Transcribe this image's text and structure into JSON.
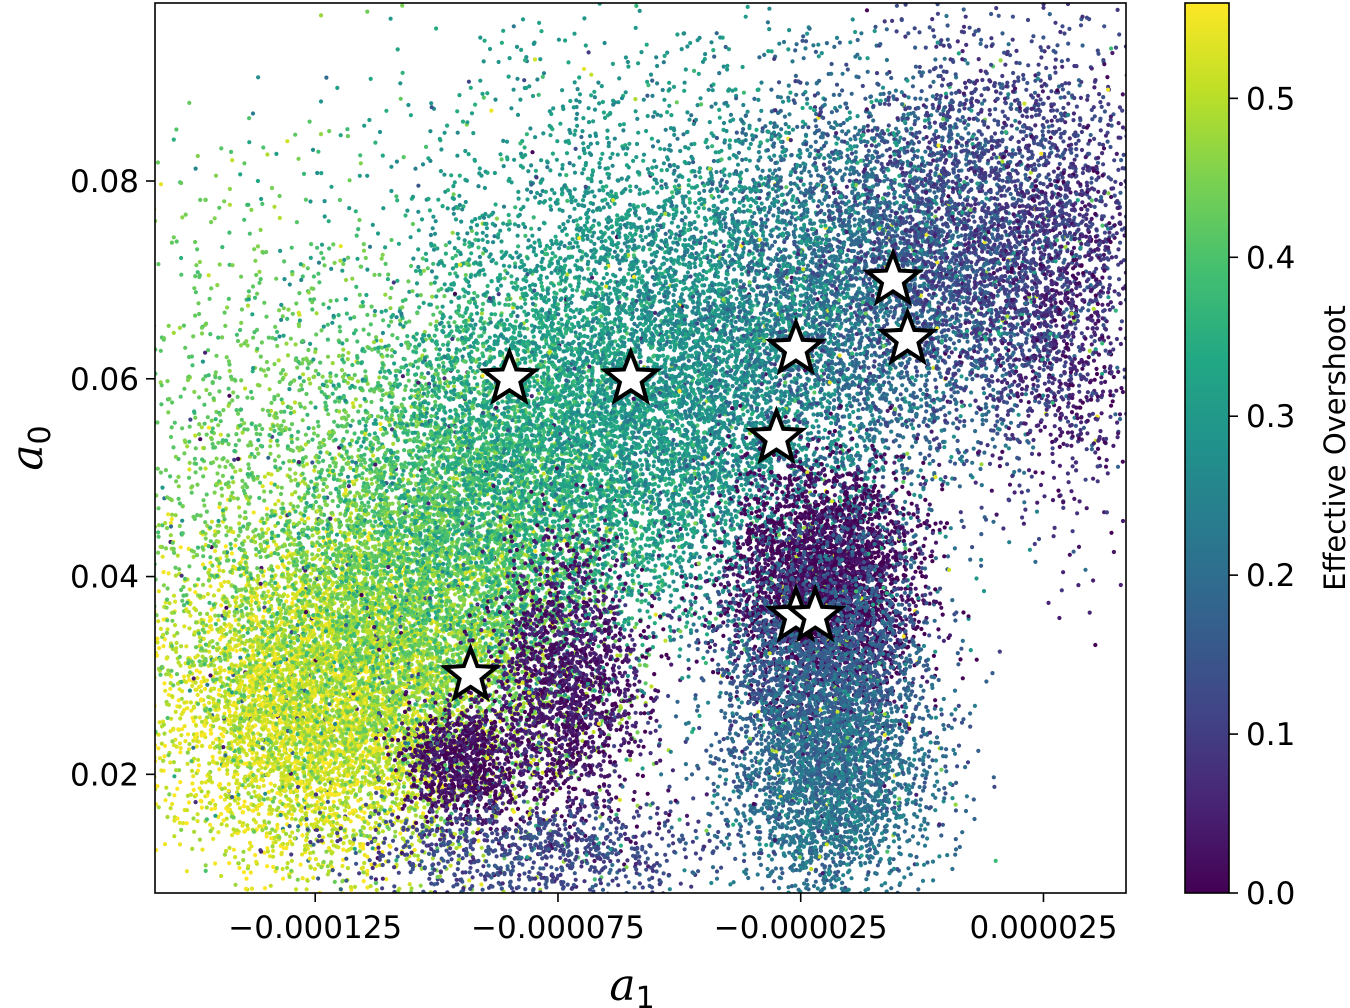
{
  "chart_data": {
    "type": "scatter",
    "title": "",
    "xlabel": "a",
    "xlabel_subscript": "1",
    "ylabel": "a",
    "ylabel_subscript": "0",
    "xlim": [
      -0.000158,
      4.2e-05
    ],
    "ylim": [
      0.008,
      0.098
    ],
    "x_ticks": [
      -0.000125,
      -7.5e-05,
      -2.5e-05,
      2.5e-05
    ],
    "x_tick_labels": [
      "−0.000125",
      "−0.000075",
      "−0.000025",
      "0.000025"
    ],
    "y_ticks": [
      0.02,
      0.04,
      0.06,
      0.08
    ],
    "y_tick_labels": [
      "0.02",
      "0.04",
      "0.06",
      "0.08"
    ],
    "grid": false,
    "colorbar": {
      "label": "Effective Overshoot",
      "colormap": "viridis",
      "range": [
        0.0,
        0.56
      ],
      "ticks": [
        0.0,
        0.1,
        0.2,
        0.3,
        0.4,
        0.5
      ],
      "tick_labels": [
        "0.0",
        "0.1",
        "0.2",
        "0.3",
        "0.4",
        "0.5"
      ]
    },
    "series": [
      {
        "marker": "point",
        "description_points": "dense cloud of samples, clusters (x, y, value)",
        "clusters": [
          {
            "x": -0.000125,
            "y": 0.027,
            "sx": 1.6e-05,
            "sy": 0.008,
            "value": 0.53,
            "n": 5000
          },
          {
            "x": -0.000105,
            "y": 0.034,
            "sx": 1.8e-05,
            "sy": 0.01,
            "value": 0.47,
            "n": 4000
          },
          {
            "x": -9.5e-05,
            "y": 0.046,
            "sx": 1.8e-05,
            "sy": 0.01,
            "value": 0.4,
            "n": 3500
          },
          {
            "x": -7e-05,
            "y": 0.055,
            "sx": 2e-05,
            "sy": 0.01,
            "value": 0.33,
            "n": 4500
          },
          {
            "x": -4e-05,
            "y": 0.06,
            "sx": 2e-05,
            "sy": 0.012,
            "value": 0.27,
            "n": 4000
          },
          {
            "x": -1e-05,
            "y": 0.07,
            "sx": 1.8e-05,
            "sy": 0.01,
            "value": 0.19,
            "n": 3500
          },
          {
            "x": 1.5e-05,
            "y": 0.075,
            "sx": 1.6e-05,
            "sy": 0.01,
            "value": 0.11,
            "n": 3000
          },
          {
            "x": 3e-05,
            "y": 0.066,
            "sx": 8e-06,
            "sy": 0.01,
            "value": 0.05,
            "n": 800
          },
          {
            "x": -2e-05,
            "y": 0.039,
            "sx": 1e-05,
            "sy": 0.006,
            "value": 0.01,
            "n": 3500
          },
          {
            "x": -2e-05,
            "y": 0.028,
            "sx": 1.1e-05,
            "sy": 0.008,
            "value": 0.17,
            "n": 3000
          },
          {
            "x": -1.8e-05,
            "y": 0.018,
            "sx": 1e-05,
            "sy": 0.006,
            "value": 0.22,
            "n": 1500
          },
          {
            "x": -7.3e-05,
            "y": 0.029,
            "sx": 8e-06,
            "sy": 0.007,
            "value": 0.03,
            "n": 1800
          },
          {
            "x": -9.5e-05,
            "y": 0.021,
            "sx": 6e-06,
            "sy": 0.003,
            "value": 0.02,
            "n": 900
          },
          {
            "x": -8e-05,
            "y": 0.012,
            "sx": 2e-05,
            "sy": 0.003,
            "value": 0.12,
            "n": 900
          },
          {
            "x": -0.000135,
            "y": 0.05,
            "sx": 2e-05,
            "sy": 0.015,
            "value": 0.43,
            "n": 1500
          },
          {
            "x": -6e-05,
            "y": 0.075,
            "sx": 3e-05,
            "sy": 0.01,
            "value": 0.3,
            "n": 1500
          }
        ]
      },
      {
        "marker": "star",
        "points": [
          {
            "x": -9.3e-05,
            "y": 0.03
          },
          {
            "x": -8.5e-05,
            "y": 0.06
          },
          {
            "x": -6e-05,
            "y": 0.06
          },
          {
            "x": -3e-05,
            "y": 0.054
          },
          {
            "x": -2.6e-05,
            "y": 0.063
          },
          {
            "x": -6e-06,
            "y": 0.07
          },
          {
            "x": -3e-06,
            "y": 0.064
          },
          {
            "x": -2.6e-05,
            "y": 0.036
          },
          {
            "x": -2.2e-05,
            "y": 0.036
          }
        ]
      }
    ]
  }
}
